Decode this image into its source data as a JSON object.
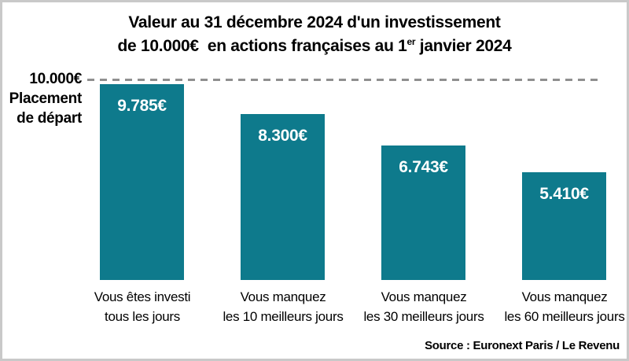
{
  "chart_data": {
    "type": "bar",
    "title": "Valeur au 31 décembre 2024 d'un investissement de 10.000€ en actions françaises au 1er janvier 2024",
    "categories": [
      "Vous êtes investi tous les jours",
      "Vous manquez les 10 meilleurs jours",
      "Vous manquez les 30 meilleurs jours",
      "Vous manquez les 60 meilleurs jours"
    ],
    "values": [
      9785,
      8300,
      6743,
      5410
    ],
    "value_labels": [
      "9.785€",
      "8.300€",
      "6.743€",
      "5.410€"
    ],
    "ylim": [
      0,
      10000
    ],
    "reference_line": {
      "value": 10000,
      "label": "10.000€",
      "caption": "Placement de départ",
      "style": "dashed"
    },
    "grid": false,
    "legend": false,
    "bar_color": "#0e7a8c",
    "source": "Source : Euronext Paris / Le Revenu"
  },
  "title": {
    "line1": "Valeur au 31 décembre 2024 d'un investissement",
    "line2_pre": "de 10.000€  en actions françaises au 1",
    "line2_sup": "er",
    "line2_post": " janvier 2024"
  },
  "axis": {
    "value_label": "10.000€",
    "caption1": "Placement",
    "caption2": "de départ"
  },
  "bars": [
    {
      "value_label": "9.785€",
      "cat1": "Vous êtes investi",
      "cat2": "tous les jours"
    },
    {
      "value_label": "8.300€",
      "cat1": "Vous manquez",
      "cat2": "les 10 meilleurs jours"
    },
    {
      "value_label": "6.743€",
      "cat1": "Vous manquez",
      "cat2": "les 30 meilleurs jours"
    },
    {
      "value_label": "5.410€",
      "cat1": "Vous manquez",
      "cat2": "les 60 meilleurs jours"
    }
  ],
  "source": "Source : Euronext Paris / Le Revenu",
  "colors": {
    "bar": "#0e7a8c",
    "dash_line": "#8f8f8f",
    "frame_border": "#c9c9c9",
    "text": "#000000",
    "value_text": "#ffffff"
  }
}
